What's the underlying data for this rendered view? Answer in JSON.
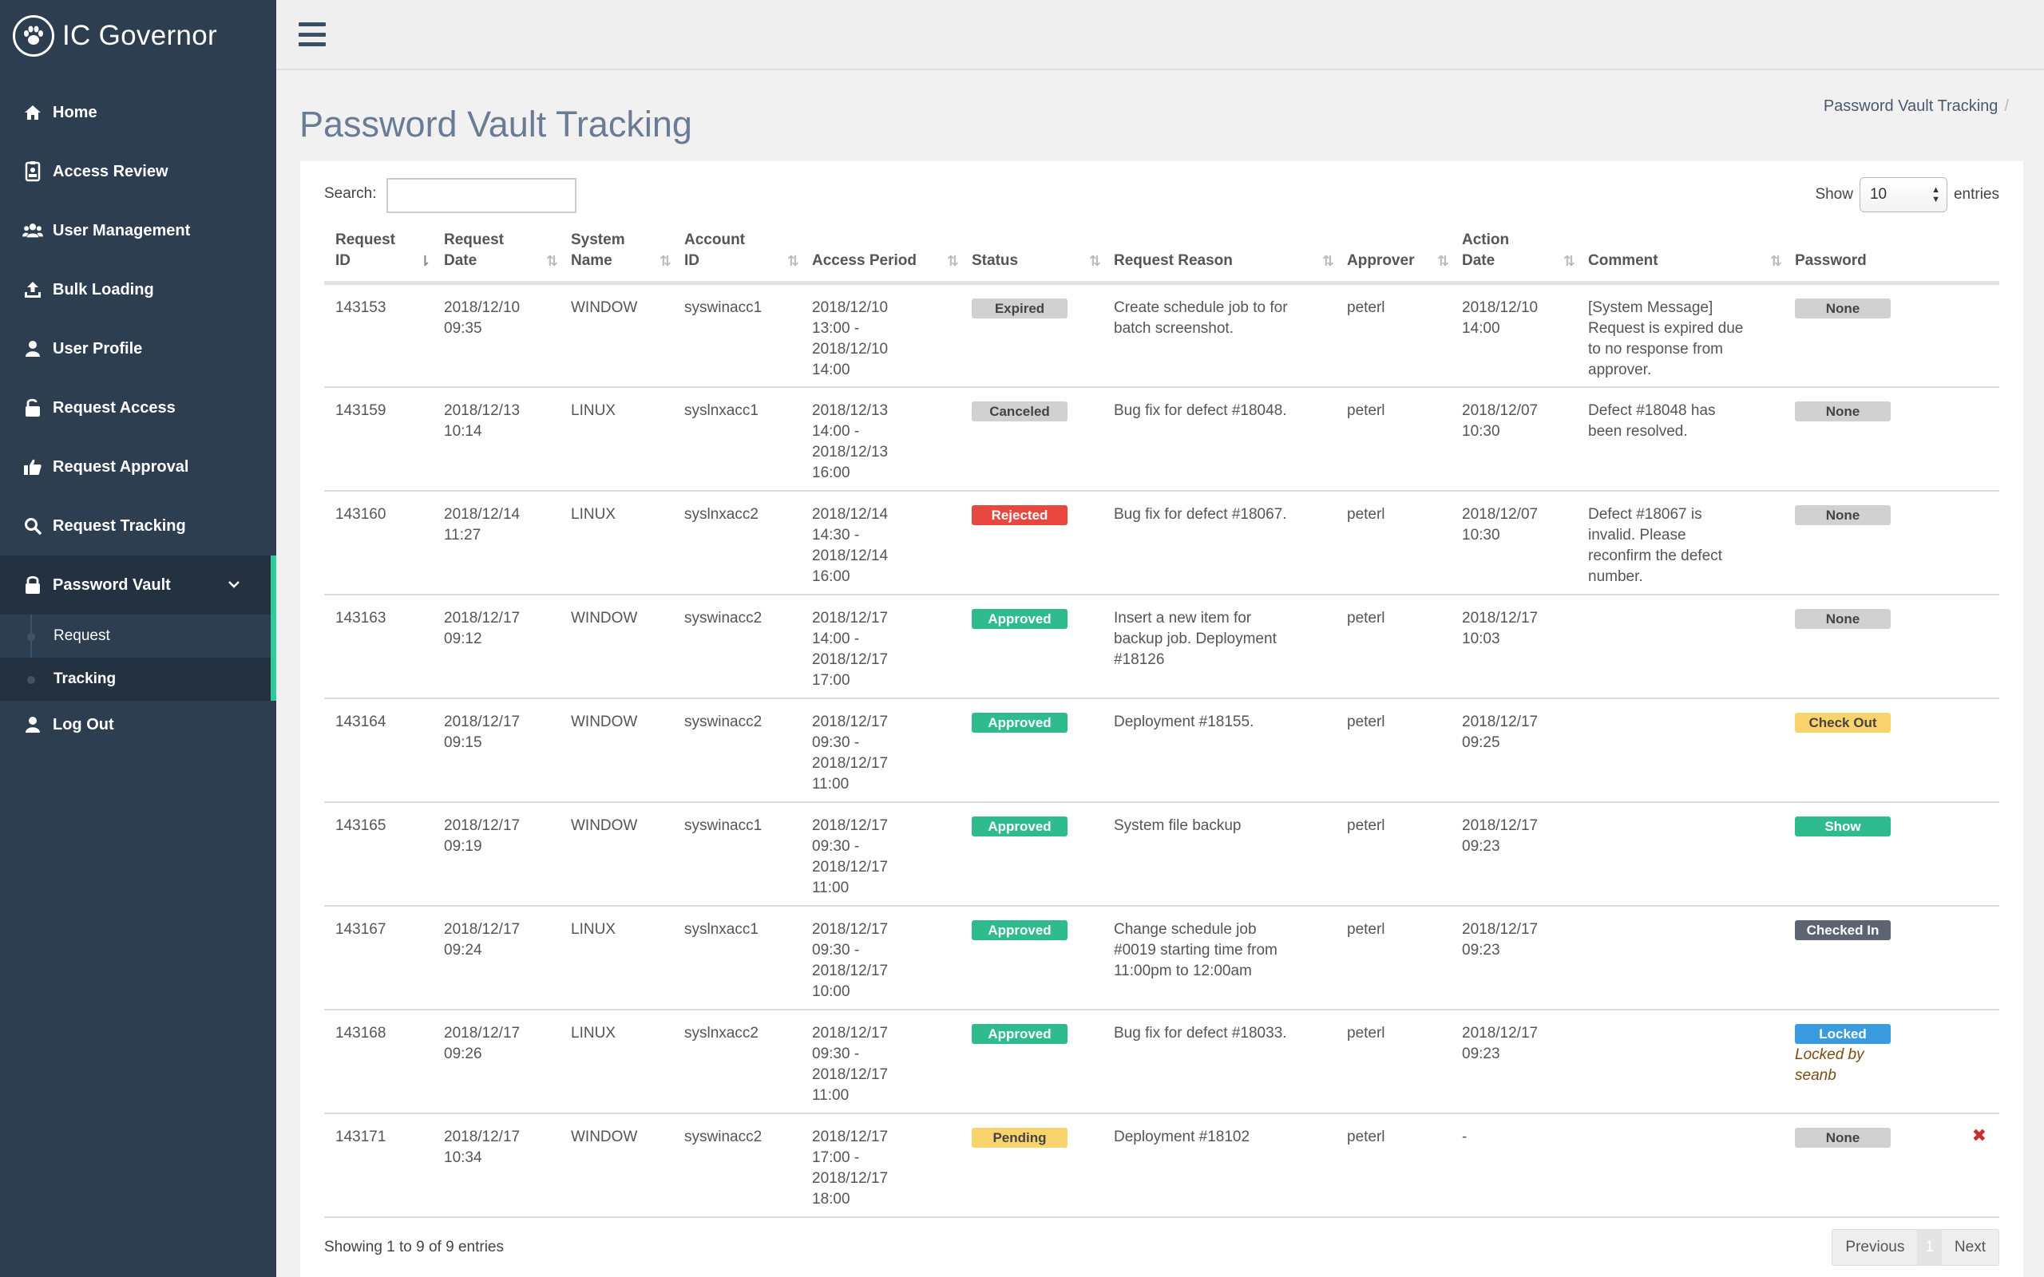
{
  "app": {
    "name": "IC Governor"
  },
  "sidebar": {
    "items": [
      {
        "label": "Home",
        "icon": "home-icon"
      },
      {
        "label": "Access Review",
        "icon": "id-badge-icon"
      },
      {
        "label": "User Management",
        "icon": "users-icon"
      },
      {
        "label": "Bulk Loading",
        "icon": "upload-icon"
      },
      {
        "label": "User Profile",
        "icon": "user-icon"
      },
      {
        "label": "Request Access",
        "icon": "unlock-icon"
      },
      {
        "label": "Request Approval",
        "icon": "thumbs-up-icon"
      },
      {
        "label": "Request Tracking",
        "icon": "search-icon"
      },
      {
        "label": "Password Vault",
        "icon": "lock-icon"
      },
      {
        "label": "Log Out",
        "icon": "user-icon"
      }
    ],
    "subitems": [
      {
        "label": "Request"
      },
      {
        "label": "Tracking"
      }
    ]
  },
  "page": {
    "title": "Password Vault Tracking",
    "breadcrumb": "Password Vault Tracking",
    "breadcrumb_sep": "/"
  },
  "table_controls": {
    "search_label": "Search:",
    "search_value": "",
    "show_label": "Show",
    "show_value": "10",
    "entries_label": "entries"
  },
  "table": {
    "headers": [
      [
        "Request",
        "ID"
      ],
      [
        "Request",
        "Date"
      ],
      [
        "System",
        "Name"
      ],
      [
        "Account",
        "ID"
      ],
      [
        "",
        "Access Period"
      ],
      [
        "",
        "Status"
      ],
      [
        "",
        "Request Reason"
      ],
      [
        "",
        "Approver"
      ],
      [
        "Action",
        "Date"
      ],
      [
        "",
        "Comment"
      ],
      [
        "",
        "Password"
      ]
    ],
    "rows": [
      {
        "id": "143153",
        "date": [
          "2018/12/10",
          "09:35"
        ],
        "system": "WINDOW",
        "account": "syswinacc1",
        "period": [
          "2018/12/10",
          "13:00 -",
          "2018/12/10",
          "14:00"
        ],
        "status": "Expired",
        "status_class": "b-expired",
        "reason": [
          "Create schedule job to for",
          "batch screenshot."
        ],
        "approver": "peterl",
        "action": [
          "2018/12/10",
          "14:00"
        ],
        "comment": [
          "[System Message]",
          "Request is expired due",
          "to no response from",
          "approver."
        ],
        "password": "None",
        "pw_class": "b-none",
        "pw_note": [],
        "delete": ""
      },
      {
        "id": "143159",
        "date": [
          "2018/12/13",
          "10:14"
        ],
        "system": "LINUX",
        "account": "syslnxacc1",
        "period": [
          "2018/12/13",
          "14:00 -",
          "2018/12/13",
          "16:00"
        ],
        "status": "Canceled",
        "status_class": "b-canceled",
        "reason": [
          "Bug fix for defect #18048."
        ],
        "approver": "peterl",
        "action": [
          "2018/12/07",
          "10:30"
        ],
        "comment": [
          "Defect #18048 has",
          "been resolved."
        ],
        "password": "None",
        "pw_class": "b-none",
        "pw_note": [],
        "delete": ""
      },
      {
        "id": "143160",
        "date": [
          "2018/12/14",
          "11:27"
        ],
        "system": "LINUX",
        "account": "syslnxacc2",
        "period": [
          "2018/12/14",
          "14:30 -",
          "2018/12/14",
          "16:00"
        ],
        "status": "Rejected",
        "status_class": "b-rejected",
        "reason": [
          "Bug fix for defect #18067."
        ],
        "approver": "peterl",
        "action": [
          "2018/12/07",
          "10:30"
        ],
        "comment": [
          "Defect #18067 is",
          "invalid. Please",
          "reconfirm the defect",
          "number."
        ],
        "password": "None",
        "pw_class": "b-none",
        "pw_note": [],
        "delete": ""
      },
      {
        "id": "143163",
        "date": [
          "2018/12/17",
          "09:12"
        ],
        "system": "WINDOW",
        "account": "syswinacc2",
        "period": [
          "2018/12/17",
          "14:00 -",
          "2018/12/17",
          "17:00"
        ],
        "status": "Approved",
        "status_class": "b-approved",
        "reason": [
          "Insert a new item for",
          "backup job. Deployment",
          "#18126"
        ],
        "approver": "peterl",
        "action": [
          "2018/12/17",
          "10:03"
        ],
        "comment": [],
        "password": "None",
        "pw_class": "b-none",
        "pw_note": [],
        "delete": ""
      },
      {
        "id": "143164",
        "date": [
          "2018/12/17",
          "09:15"
        ],
        "system": "WINDOW",
        "account": "syswinacc2",
        "period": [
          "2018/12/17",
          "09:30 -",
          "2018/12/17",
          "11:00"
        ],
        "status": "Approved",
        "status_class": "b-approved",
        "reason": [
          "Deployment #18155."
        ],
        "approver": "peterl",
        "action": [
          "2018/12/17",
          "09:25"
        ],
        "comment": [],
        "password": "Check Out",
        "pw_class": "b-checkout",
        "pw_note": [],
        "delete": ""
      },
      {
        "id": "143165",
        "date": [
          "2018/12/17",
          "09:19"
        ],
        "system": "WINDOW",
        "account": "syswinacc1",
        "period": [
          "2018/12/17",
          "09:30 -",
          "2018/12/17",
          "11:00"
        ],
        "status": "Approved",
        "status_class": "b-approved",
        "reason": [
          "System file backup"
        ],
        "approver": "peterl",
        "action": [
          "2018/12/17",
          "09:23"
        ],
        "comment": [],
        "password": "Show",
        "pw_class": "b-show",
        "pw_note": [],
        "delete": ""
      },
      {
        "id": "143167",
        "date": [
          "2018/12/17",
          "09:24"
        ],
        "system": "LINUX",
        "account": "syslnxacc1",
        "period": [
          "2018/12/17",
          "09:30 -",
          "2018/12/17",
          "10:00"
        ],
        "status": "Approved",
        "status_class": "b-approved",
        "reason": [
          "Change schedule job",
          "#0019 starting time from",
          "11:00pm to 12:00am"
        ],
        "approver": "peterl",
        "action": [
          "2018/12/17",
          "09:23"
        ],
        "comment": [],
        "password": "Checked In",
        "pw_class": "b-checkedin",
        "pw_note": [],
        "delete": ""
      },
      {
        "id": "143168",
        "date": [
          "2018/12/17",
          "09:26"
        ],
        "system": "LINUX",
        "account": "syslnxacc2",
        "period": [
          "2018/12/17",
          "09:30 -",
          "2018/12/17",
          "11:00"
        ],
        "status": "Approved",
        "status_class": "b-approved",
        "reason": [
          "Bug fix for defect #18033."
        ],
        "approver": "peterl",
        "action": [
          "2018/12/17",
          "09:23"
        ],
        "comment": [],
        "password": "Locked",
        "pw_class": "b-locked",
        "pw_note": [
          "Locked by",
          "seanb"
        ],
        "delete": ""
      },
      {
        "id": "143171",
        "date": [
          "2018/12/17",
          "10:34"
        ],
        "system": "WINDOW",
        "account": "syswinacc2",
        "period": [
          "2018/12/17",
          "17:00 -",
          "2018/12/17",
          "18:00"
        ],
        "status": "Pending",
        "status_class": "b-pending",
        "reason": [
          "Deployment #18102"
        ],
        "approver": "peterl",
        "action": [
          "-"
        ],
        "comment": [],
        "password": "None",
        "pw_class": "b-none",
        "pw_note": [],
        "delete": "✖"
      }
    ]
  },
  "footer": {
    "info": "Showing 1 to 9 of 9 entries",
    "previous": "Previous",
    "page": "1",
    "next": "Next"
  },
  "colors": {
    "sidebar_bg": "#2d3e50",
    "accent": "#2ecc9a",
    "approved": "#2ebc8e",
    "rejected": "#e8473f",
    "pending": "#f9d36b",
    "locked": "#3a9be0"
  }
}
